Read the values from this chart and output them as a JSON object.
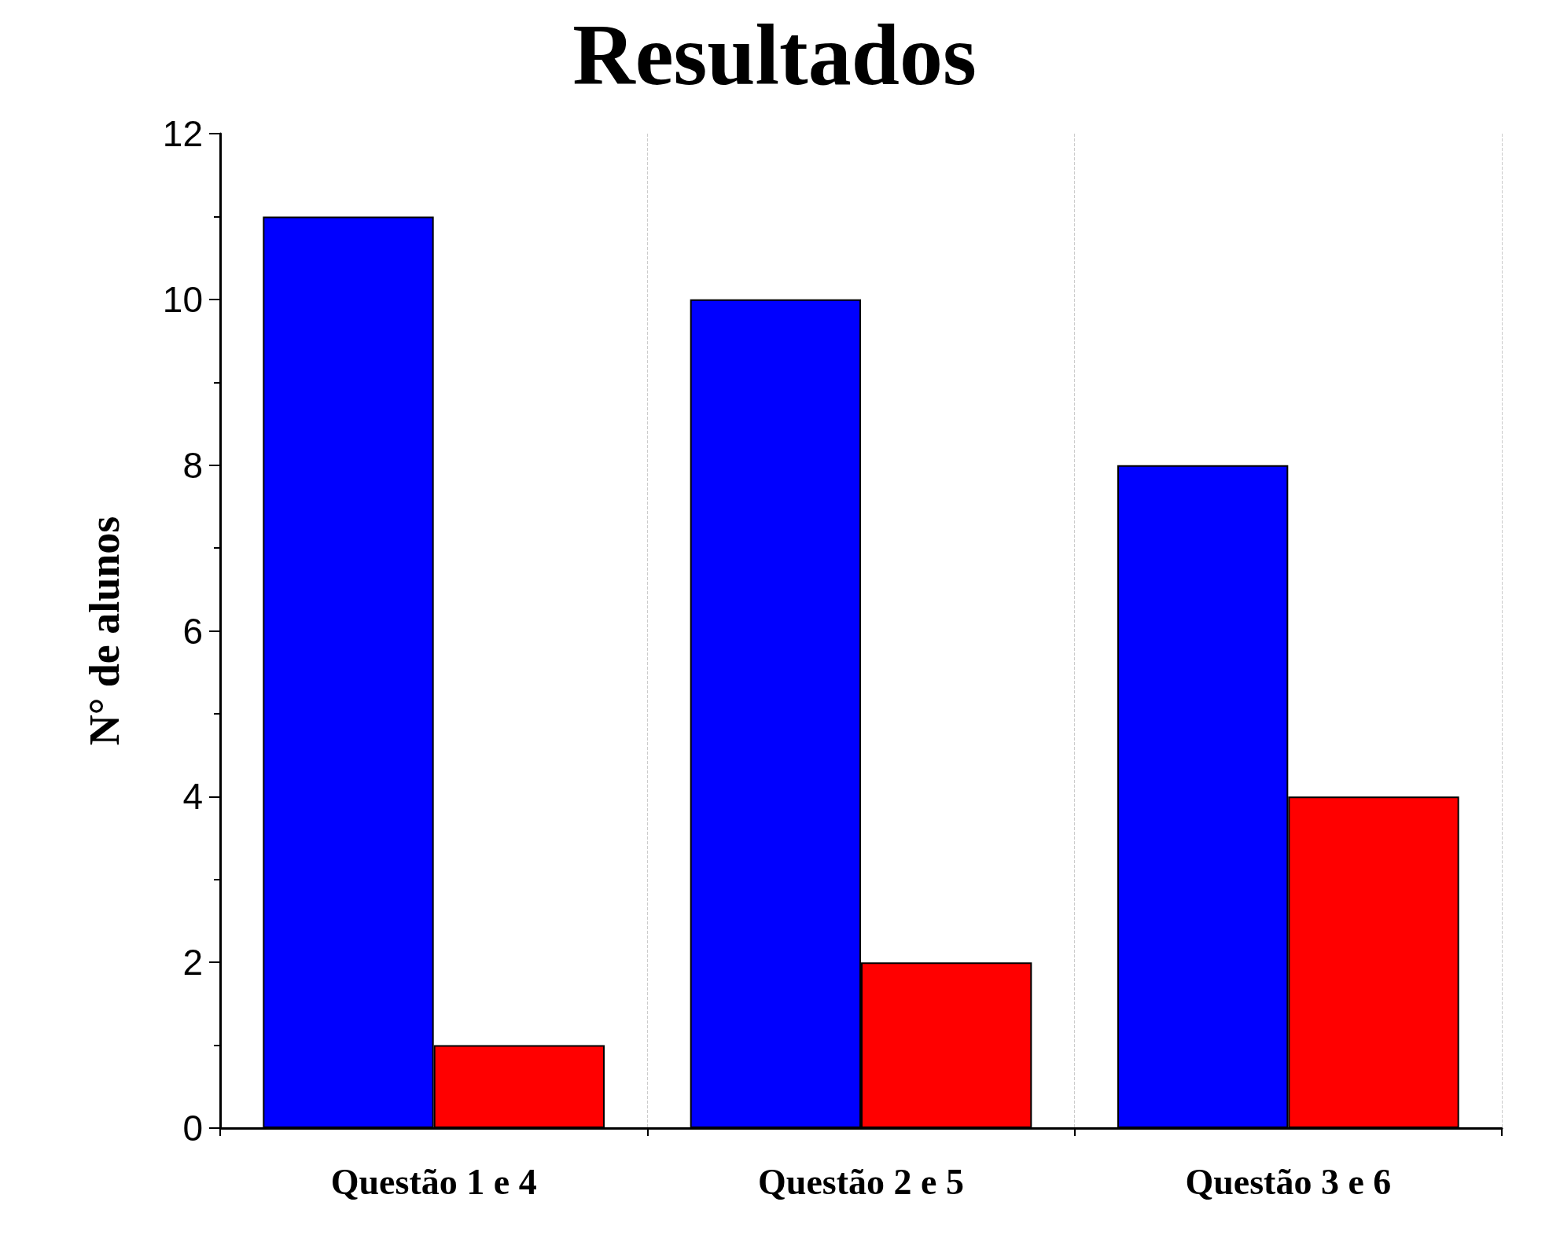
{
  "chart_data": {
    "type": "bar",
    "title": "Resultados",
    "ylabel": "N° de alunos",
    "categories": [
      "Questão 1 e 4",
      "Questão 2 e 5",
      "Questão 3 e 6"
    ],
    "series": [
      {
        "color": "#0000ff",
        "values": [
          11,
          10,
          8
        ]
      },
      {
        "color": "#ff0000",
        "values": [
          1,
          2,
          4
        ]
      }
    ],
    "ylim": [
      0,
      12
    ],
    "yticks": [
      0,
      2,
      4,
      6,
      8,
      10,
      12
    ],
    "grid": "x"
  }
}
